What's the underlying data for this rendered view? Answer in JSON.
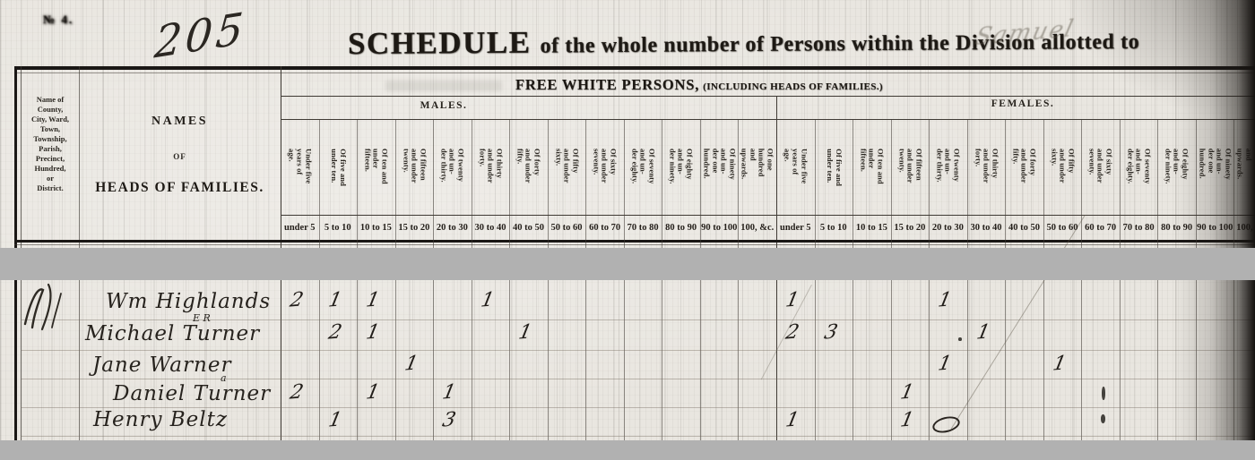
{
  "page": {
    "stamp_text": "№ 4.",
    "page_number": "205",
    "title_word1": "SCHEDULE",
    "title_rest": "of the whole number of Persons within the Division allotted to",
    "handwritten_assignee": "Samuel"
  },
  "table": {
    "corner_header": "Name of\nCounty,\nCity, Ward,\nTown,\nTownship,\nParish,\nPrecinct,\nHundred,\nor\nDistrict.",
    "names_header_line1": "NAMES",
    "names_header_line2": "OF",
    "names_header_line3": "HEADS OF FAMILIES.",
    "section_header_main": "FREE WHITE PERSONS,",
    "section_header_paren": "(INCLUDING HEADS OF FAMILIES.)",
    "males_label": "MALES.",
    "females_label": "FEMALES.",
    "age_column_headers": [
      "Under five years of age.",
      "Of five and under ten.",
      "Of ten and under fifteen.",
      "Of fifteen and under twenty.",
      "Of twenty and un- der thirty.",
      "Of thirty and under forty.",
      "Of forty and under fifty.",
      "Of fifty and under sixty.",
      "Of sixty and under seventy.",
      "Of seventy and un- der eighty.",
      "Of eighty and un- der ninety.",
      "Of ninety and un- der one hundred.",
      "Of one hundred and upwards."
    ],
    "age_range_labels": [
      "under 5",
      "5 to 10",
      "10 to 15",
      "15 to 20",
      "20 to 30",
      "30 to 40",
      "40 to 50",
      "50 to 60",
      "60 to 70",
      "70 to 80",
      "80 to 90",
      "90 to 100",
      "100, &c."
    ]
  },
  "records": [
    {
      "name": "Wm Highlands",
      "annotation": "",
      "males": [
        "2",
        "1",
        "1",
        "",
        "",
        "1",
        "",
        "",
        "",
        "",
        "",
        "",
        ""
      ],
      "females": [
        "1",
        "",
        "",
        "",
        "1",
        "",
        "",
        "",
        "",
        "",
        "",
        "",
        ""
      ]
    },
    {
      "name": "Michael Turner",
      "annotation": "E R",
      "males": [
        "",
        "2",
        "1",
        "",
        "",
        "",
        "1",
        "",
        "",
        "",
        "",
        "",
        ""
      ],
      "females": [
        "2",
        "3",
        "",
        "",
        "",
        "1",
        "",
        "",
        "",
        "",
        "",
        "",
        ""
      ]
    },
    {
      "name": "Jane Warner",
      "annotation": "",
      "males": [
        "",
        "",
        "",
        "1",
        "",
        "",
        "",
        "",
        "",
        "",
        "",
        "",
        ""
      ],
      "females": [
        "",
        "",
        "",
        "",
        "1",
        "",
        "",
        "1",
        "",
        "",
        "",
        "",
        ""
      ]
    },
    {
      "name": "Daniel Turner",
      "annotation": "a",
      "males": [
        "2",
        "",
        "1",
        "",
        "1",
        "",
        "",
        "",
        "",
        "",
        "",
        "",
        ""
      ],
      "females": [
        "",
        "",
        "",
        "1",
        "",
        "",
        "",
        "",
        "",
        "",
        "",
        "",
        ""
      ]
    },
    {
      "name": "Henry Beltz",
      "annotation": "",
      "males": [
        "",
        "1",
        "",
        "",
        "3",
        "",
        "",
        "",
        "",
        "",
        "",
        "",
        ""
      ],
      "females": [
        "1",
        "",
        "",
        "1",
        "(scribble)",
        "",
        "",
        "",
        "",
        "",
        "",
        "",
        ""
      ]
    }
  ],
  "colors": {
    "paper": "#e9e6e0",
    "printed_ink": "#1d1914",
    "handwriting_ink": "#26221d",
    "redaction_gray": "#b1b1b1",
    "page_edge_shadow": "#14120f"
  }
}
